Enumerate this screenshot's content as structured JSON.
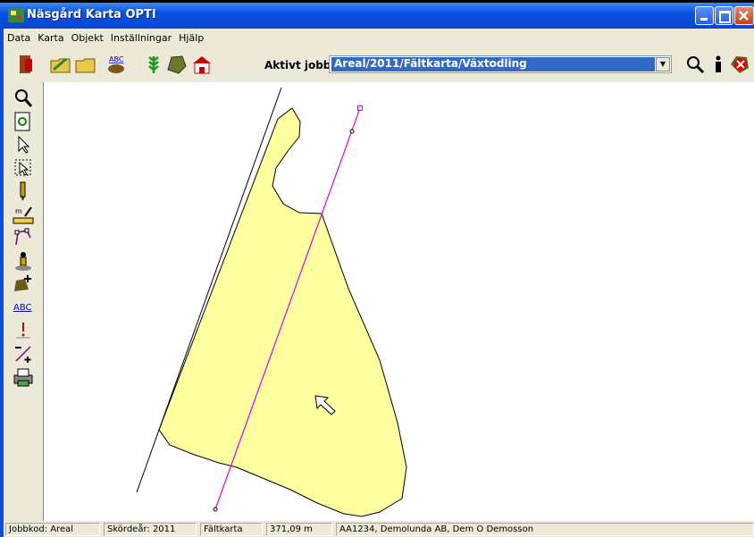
{
  "window": {
    "title": "Näsgård Karta OPTI"
  },
  "menu": [
    "Data",
    "Karta",
    "Objekt",
    "Inställningar",
    "Hjälp"
  ],
  "toolbar": {
    "abc_icon": "ABC",
    "job_label": "Aktivt jobb",
    "job_value": "Areal/2011/Fältkarta/Växtodling"
  },
  "side_toolbar": {
    "abc_icon": "ABC"
  },
  "status_bar": [
    "Jobbkod: Areal",
    "Skördeår: 2011",
    "Fältkarta",
    "371,09 m",
    "AA1234, Demolunda AB, Dem O Demosson"
  ]
}
